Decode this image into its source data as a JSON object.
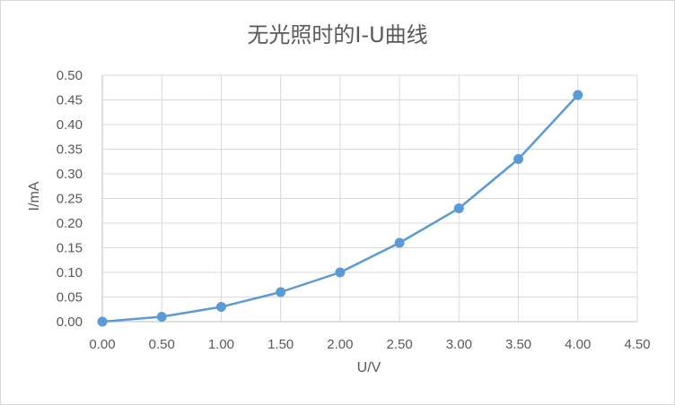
{
  "chart_data": {
    "type": "line",
    "title": "无光照时的I-U曲线",
    "xlabel": "U/V",
    "ylabel": "I/mA",
    "xlim": [
      0,
      4.5
    ],
    "ylim": [
      0,
      0.5
    ],
    "x_ticks": [
      "0.00",
      "0.50",
      "1.00",
      "1.50",
      "2.00",
      "2.50",
      "3.00",
      "3.50",
      "4.00",
      "4.50"
    ],
    "y_ticks": [
      "0.00",
      "0.05",
      "0.10",
      "0.15",
      "0.20",
      "0.25",
      "0.30",
      "0.35",
      "0.40",
      "0.45",
      "0.50"
    ],
    "grid": true,
    "series": [
      {
        "x": [
          0.0,
          0.5,
          1.0,
          1.5,
          2.0,
          2.5,
          3.0,
          3.5,
          4.0
        ],
        "y": [
          0.0,
          0.01,
          0.03,
          0.06,
          0.1,
          0.16,
          0.23,
          0.33,
          0.46
        ],
        "color": "#5b9bd5",
        "marker": "circle"
      }
    ]
  }
}
